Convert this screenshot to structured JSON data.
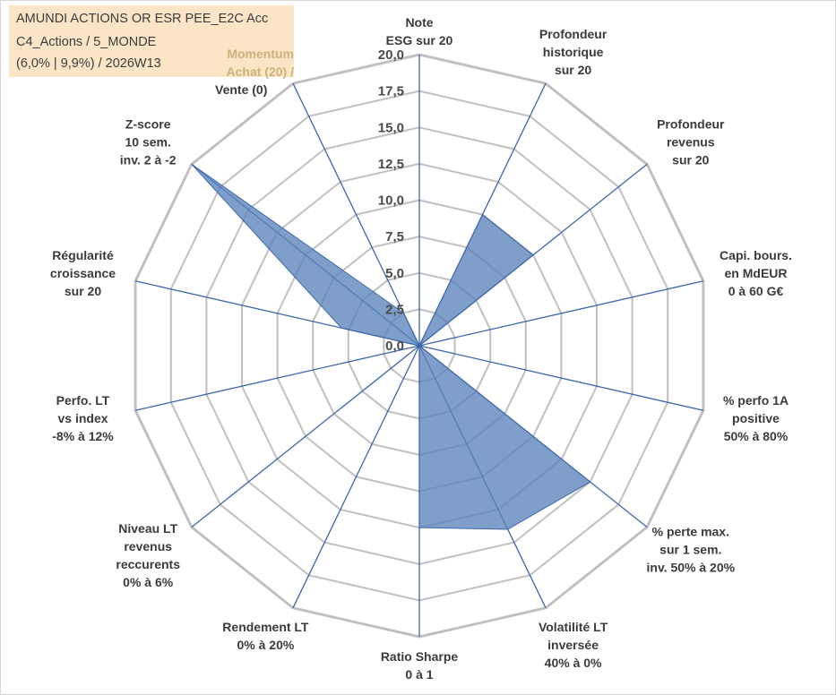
{
  "info": {
    "line1": "AMUNDI ACTIONS OR ESR PEE_E2C Acc",
    "line2": "C4_Actions / 5_MONDE",
    "line3": "(6,0% | 9,9%) / 2026W13",
    "momentum_line1": "Momentum",
    "momentum_line2": "Achat (20) /",
    "momentum_line3": "Vente (0)"
  },
  "colors": {
    "grid": "#c0c0c0",
    "spokes": "#3d66ad",
    "fill": "#5b83bb",
    "fill_stroke": "#3e67ab",
    "info_bg": "#fbe5c6",
    "momentum_text": "#c9b27b"
  },
  "chart_data": {
    "type": "radar",
    "title": "",
    "rmin": 0,
    "rmax": 20,
    "tick_step": 2.5,
    "tick_labels": [
      "0,0",
      "2,5",
      "5,0",
      "7,5",
      "10,0",
      "12,5",
      "15,0",
      "17,5",
      "20,0"
    ],
    "axes": [
      {
        "lines": [
          "Note",
          "ESG sur 20"
        ],
        "value": 0
      },
      {
        "lines": [
          "Profondeur",
          "historique",
          "sur 20"
        ],
        "value": 10
      },
      {
        "lines": [
          "Profondeur",
          "revenus",
          "sur 20"
        ],
        "value": 10
      },
      {
        "lines": [
          "Capi. bours.",
          "en MdEUR",
          "0 à 60 G€"
        ],
        "value": 0
      },
      {
        "lines": [
          "% perfo 1A",
          "positive",
          "50% à 80%"
        ],
        "value": 0
      },
      {
        "lines": [
          "% perte max.",
          "sur 1 sem.",
          "inv. 50% à 20%"
        ],
        "value": 15
      },
      {
        "lines": [
          "Volatilité LT",
          "inversée",
          "40% à 0%"
        ],
        "value": 14
      },
      {
        "lines": [
          "Ratio Sharpe",
          "0 à 1"
        ],
        "value": 12.5
      },
      {
        "lines": [
          "Rendement LT",
          "0% à 20%"
        ],
        "value": 0
      },
      {
        "lines": [
          "Niveau LT",
          "revenus",
          "reccurents",
          "0% à 6%"
        ],
        "value": 0
      },
      {
        "lines": [
          "Perfo. LT",
          "vs index",
          "-8% à 12%"
        ],
        "value": 0
      },
      {
        "lines": [
          "Régularité",
          "croissance",
          "sur 20"
        ],
        "value": 5.5
      },
      {
        "lines": [
          "Z-score",
          "10 sem.",
          "inv. 2 à -2"
        ],
        "value": 20
      },
      {
        "lines": [],
        "value": 2.5
      }
    ]
  }
}
